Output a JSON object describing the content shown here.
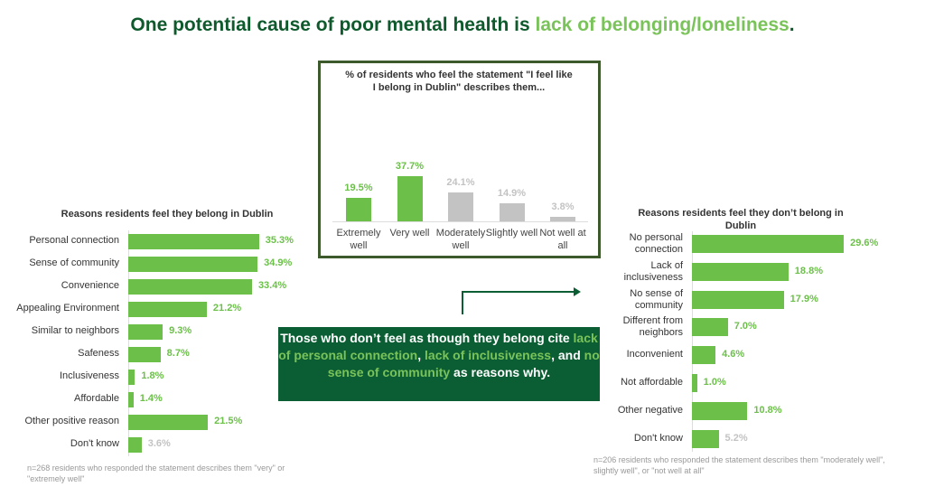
{
  "title": {
    "prefix": "One potential cause of poor mental health is ",
    "highlight": "lack of belonging/loneliness",
    "suffix": "."
  },
  "callout": {
    "p1": "Those who don’t feel as though they belong cite ",
    "h1": "lack of personal connection",
    "p2": ", ",
    "h2": "lack of inclusiveness",
    "p3": ", and ",
    "h3": "no sense of community",
    "p4": " as reasons why."
  },
  "colors": {
    "green": "#6cc04a",
    "gray": "#c3c3c3",
    "dark_green": "#0b5e33"
  },
  "chart_data": [
    {
      "type": "bar",
      "id": "center",
      "title": "% of residents who feel the statement \"I feel like I belong in Dublin\" describes them...",
      "categories": [
        "Extremely well",
        "Very well",
        "Moderately well",
        "Slightly well",
        "Not well at all"
      ],
      "values": [
        19.5,
        37.7,
        24.1,
        14.9,
        3.8
      ],
      "labels": [
        "19.5%",
        "37.7%",
        "24.1%",
        "14.9%",
        "3.8%"
      ],
      "highlight": [
        true,
        true,
        false,
        false,
        false
      ]
    },
    {
      "type": "bar",
      "orientation": "horizontal",
      "id": "left",
      "title": "Reasons residents feel they belong in Dublin",
      "categories": [
        "Personal connection",
        "Sense of community",
        "Convenience",
        "Appealing Environment",
        "Similar to neighbors",
        "Safeness",
        "Inclusiveness",
        "Affordable",
        "Other positive reason",
        "Don't know"
      ],
      "values": [
        35.3,
        34.9,
        33.4,
        21.2,
        9.3,
        8.7,
        1.8,
        1.4,
        21.5,
        3.6
      ],
      "labels": [
        "35.3%",
        "34.9%",
        "33.4%",
        "21.2%",
        "9.3%",
        "8.7%",
        "1.8%",
        "1.4%",
        "21.5%",
        "3.6%"
      ],
      "gray_label": [
        false,
        false,
        false,
        false,
        false,
        false,
        false,
        false,
        false,
        true
      ],
      "note": "n=268 residents who responded the statement describes them \"very\" or \"extremely well\""
    },
    {
      "type": "bar",
      "orientation": "horizontal",
      "id": "right",
      "title": "Reasons residents feel they don’t belong in Dublin",
      "categories": [
        "No personal connection",
        "Lack of inclusiveness",
        "No sense of community",
        "Different from neighbors",
        "Inconvenient",
        "Not affordable",
        "Other negative",
        "Don't know"
      ],
      "values": [
        29.6,
        18.8,
        17.9,
        7.0,
        4.6,
        1.0,
        10.8,
        5.2
      ],
      "labels": [
        "29.6%",
        "18.8%",
        "17.9%",
        "7.0%",
        "4.6%",
        "1.0%",
        "10.8%",
        "5.2%"
      ],
      "gray_label": [
        false,
        false,
        false,
        false,
        false,
        false,
        false,
        true
      ],
      "note": "n=206 residents who responded the statement describes them \"moderately well\", slightly well\", or \"not well at all\""
    }
  ]
}
